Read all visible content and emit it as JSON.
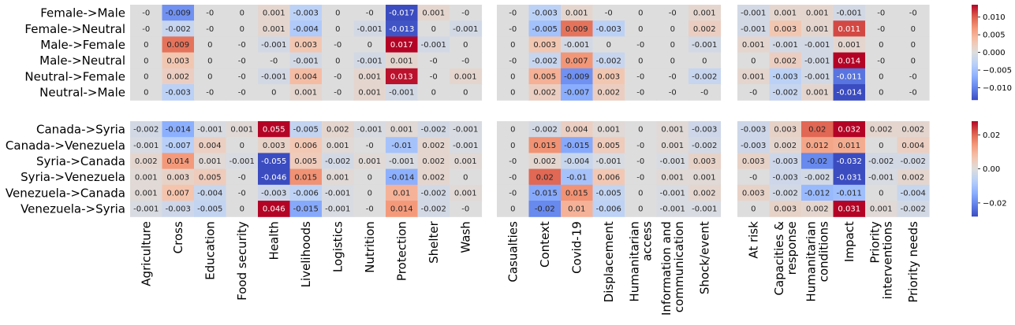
{
  "chart_data": {
    "type": "heatmap",
    "colormap": "coolwarm",
    "nan_color": "#dcdcdc",
    "rows_top": [
      "Female->Male",
      "Female->Neutral",
      "Male->Female",
      "Male->Neutral",
      "Neutral->Female",
      "Neutral->Male"
    ],
    "rows_bottom": [
      "Canada->Syria",
      "Canada->Venezuela",
      "Syria->Canada",
      "Syria->Venezuela",
      "Venezuela->Canada",
      "Venezuela->Syria"
    ],
    "groups": [
      {
        "columns": [
          "Agriculture",
          "Cross",
          "Education",
          "Food security",
          "Health",
          "Livelihoods",
          "Logistics",
          "Nutrition",
          "Protection",
          "Shelter",
          "Wash"
        ],
        "top": [
          [
            "-0",
            "-0.009",
            "-0",
            "0",
            "0.001",
            "-0.003",
            "0",
            "-0",
            "-0.017",
            "0.001",
            "-0"
          ],
          [
            "-0",
            "-0.002",
            "-0",
            "0",
            "0.001",
            "-0.004",
            "0",
            "-0.001",
            "-0.013",
            "0",
            "-0.001"
          ],
          [
            "0",
            "0.009",
            "0",
            "-0",
            "-0.001",
            "0.003",
            "-0",
            "0",
            "0.017",
            "-0.001",
            "0"
          ],
          [
            "0",
            "0.003",
            "0",
            "-0",
            "-0",
            "-0.001",
            "0",
            "-0.001",
            "0.001",
            "-0",
            "-0"
          ],
          [
            "0",
            "0.002",
            "0",
            "-0",
            "-0.001",
            "0.004",
            "-0",
            "0.001",
            "0.013",
            "-0",
            "0.001"
          ],
          [
            "0",
            "-0.003",
            "-0",
            "-0",
            "0",
            "0.001",
            "-0",
            "0.001",
            "-0.001",
            "0",
            "0"
          ]
        ],
        "bottom": [
          [
            "-0.002",
            "-0.014",
            "-0.001",
            "0.001",
            "0.055",
            "-0.005",
            "0.002",
            "-0.001",
            "0.001",
            "-0.002",
            "-0.001"
          ],
          [
            "-0.001",
            "-0.007",
            "0.004",
            "0",
            "0.003",
            "0.006",
            "0.001",
            "-0",
            "-0.01",
            "0.002",
            "-0.001"
          ],
          [
            "0.002",
            "0.014",
            "0.001",
            "-0.001",
            "-0.055",
            "0.005",
            "-0.002",
            "0.001",
            "-0.001",
            "0.002",
            "0.001"
          ],
          [
            "0.001",
            "0.003",
            "0.005",
            "-0",
            "-0.046",
            "0.015",
            "0.001",
            "0",
            "-0.014",
            "0.002",
            "0"
          ],
          [
            "0.001",
            "0.007",
            "-0.004",
            "-0",
            "-0.003",
            "-0.006",
            "-0.001",
            "0",
            "0.01",
            "-0.002",
            "0.001"
          ],
          [
            "-0.001",
            "-0.003",
            "-0.005",
            "0",
            "0.046",
            "-0.015",
            "-0.001",
            "-0",
            "0.014",
            "-0.002",
            "-0"
          ]
        ]
      },
      {
        "columns": [
          "Casualties",
          "Context",
          "Covid-19",
          "Displacement",
          "Humanitarian\naccess",
          "Information and\ncommunication",
          "Shock/event"
        ],
        "top": [
          [
            "-0",
            "-0.003",
            "0.001",
            "-0",
            "0",
            "-0",
            "0.001"
          ],
          [
            "-0",
            "-0.005",
            "0.009",
            "-0.003",
            "0",
            "0",
            "0.002"
          ],
          [
            "0",
            "0.003",
            "-0.001",
            "0",
            "-0",
            "0",
            "-0.001"
          ],
          [
            "-0",
            "-0.002",
            "0.007",
            "-0.002",
            "0",
            "0",
            "0"
          ],
          [
            "0",
            "0.005",
            "-0.009",
            "0.003",
            "-0",
            "-0",
            "-0.002"
          ],
          [
            "0",
            "0.002",
            "-0.007",
            "0.002",
            "-0",
            "-0",
            "-0"
          ]
        ],
        "bottom": [
          [
            "0",
            "-0.002",
            "0.004",
            "0.001",
            "0",
            "0.001",
            "-0.003"
          ],
          [
            "0",
            "0.015",
            "-0.015",
            "0.005",
            "-0",
            "0.001",
            "-0.002"
          ],
          [
            "-0",
            "0.002",
            "-0.004",
            "-0.001",
            "-0",
            "-0.001",
            "0.003"
          ],
          [
            "-0",
            "0.02",
            "-0.01",
            "0.006",
            "-0",
            "0.001",
            "0.001"
          ],
          [
            "-0",
            "-0.015",
            "0.015",
            "-0.005",
            "0",
            "-0.001",
            "0.002"
          ],
          [
            "0",
            "-0.02",
            "0.01",
            "-0.006",
            "0",
            "-0.001",
            "-0.001"
          ]
        ]
      },
      {
        "columns": [
          "At risk",
          "Capacities &\nresponse",
          "Humanitarian\nconditions",
          "Impact",
          "Priority\ninterventions",
          "Priority needs"
        ],
        "top": [
          [
            "-0.001",
            "0.001",
            "0.001",
            "-0.001",
            "-0",
            "-0"
          ],
          [
            "-0.001",
            "0.003",
            "0.001",
            "0.011",
            "-0",
            "0"
          ],
          [
            "0.001",
            "-0.001",
            "-0.001",
            "0.001",
            "0",
            "0"
          ],
          [
            "0",
            "0.002",
            "-0.001",
            "0.014",
            "-0",
            "0"
          ],
          [
            "0.001",
            "-0.003",
            "-0.001",
            "-0.011",
            "0",
            "-0"
          ],
          [
            "-0",
            "-0.002",
            "0.001",
            "-0.014",
            "0",
            "-0"
          ]
        ],
        "bottom": [
          [
            "-0.003",
            "0.003",
            "0.02",
            "0.032",
            "0.002",
            "0.002"
          ],
          [
            "-0.003",
            "0.002",
            "0.012",
            "0.011",
            "0",
            "0.004"
          ],
          [
            "0.003",
            "-0.003",
            "-0.02",
            "-0.032",
            "-0.002",
            "-0.002"
          ],
          [
            "-0",
            "-0.003",
            "-0.002",
            "-0.031",
            "-0.001",
            "0.002"
          ],
          [
            "0.003",
            "-0.002",
            "-0.012",
            "-0.011",
            "0",
            "-0.004"
          ],
          [
            "0",
            "0.003",
            "0.002",
            "0.031",
            "0.001",
            "-0.002"
          ]
        ]
      }
    ],
    "colorbar_top": {
      "range": [
        -0.0135,
        0.0135
      ],
      "ticks": [
        "0.010",
        "0.005",
        "0.000",
        "−0.005",
        "−0.010"
      ],
      "tick_values": [
        0.01,
        0.005,
        0,
        -0.005,
        -0.01
      ]
    },
    "colorbar_bottom": {
      "range": [
        -0.028,
        0.028
      ],
      "ticks": [
        "0.02",
        "0.00",
        "−0.02"
      ],
      "tick_values": [
        0.02,
        0,
        -0.02
      ]
    }
  }
}
